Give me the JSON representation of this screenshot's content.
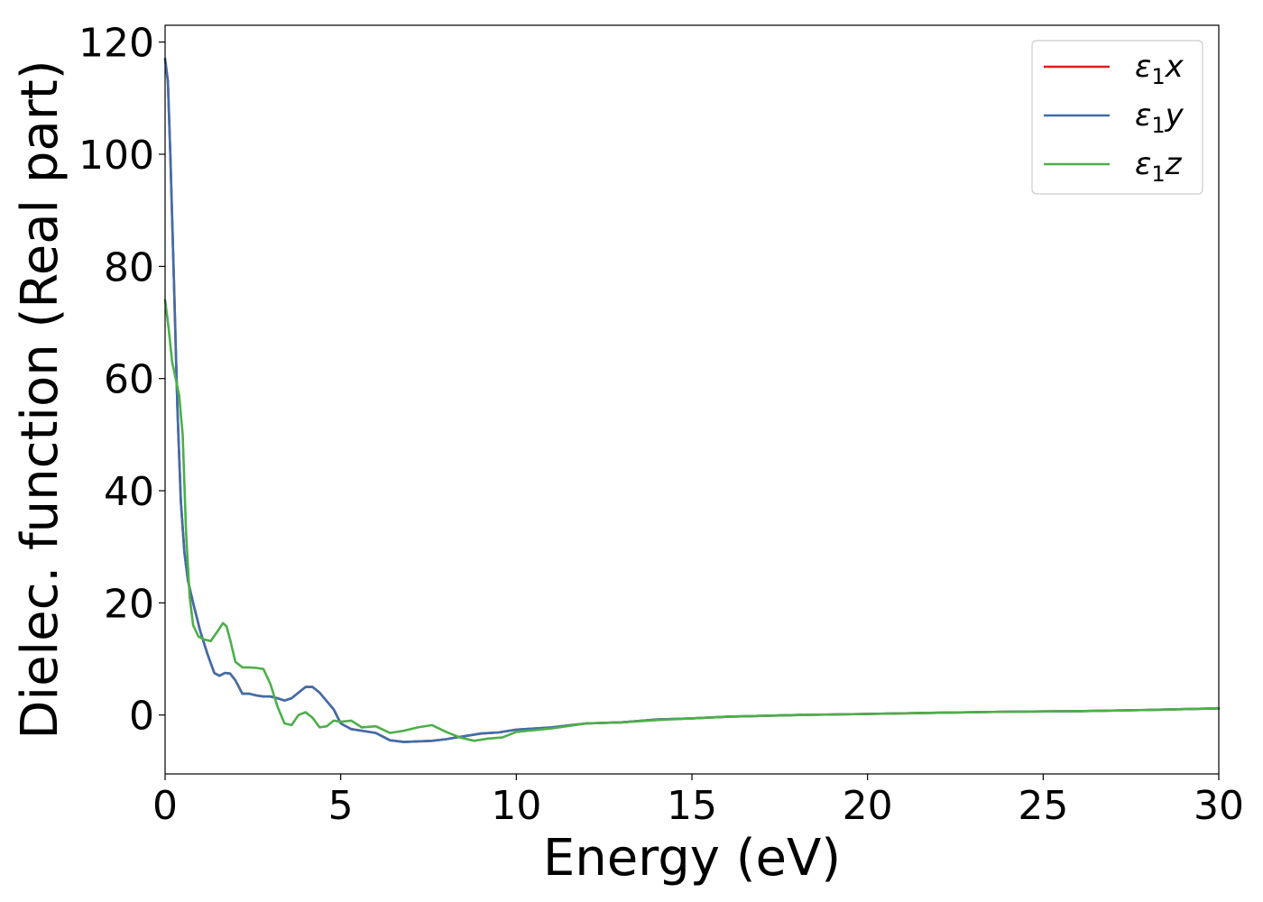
{
  "chart_data": {
    "type": "line",
    "title": "",
    "xlabel": "Energy (eV)",
    "ylabel": "Dielec. function (Real part)",
    "xlim": [
      0,
      30
    ],
    "ylim": [
      -10.5,
      123
    ],
    "xticks": [
      0,
      5,
      10,
      15,
      20,
      25,
      30
    ],
    "yticks": [
      0,
      20,
      40,
      60,
      80,
      100,
      120
    ],
    "xtick_labels": [
      "0",
      "5",
      "10",
      "15",
      "20",
      "25",
      "30"
    ],
    "ytick_labels": [
      "0",
      "20",
      "40",
      "60",
      "80",
      "100",
      "120"
    ],
    "grid": false,
    "legend_position": "top-right",
    "series": [
      {
        "name": "ε1x",
        "legend_base": "ε",
        "legend_sub": "1",
        "legend_suffix": "x",
        "color": "#e41a1c",
        "x": [
          0,
          0.08,
          0.15,
          0.25,
          0.35,
          0.45,
          0.55,
          0.65,
          0.8,
          1.0,
          1.2,
          1.4,
          1.55,
          1.7,
          1.85,
          2.0,
          2.2,
          2.4,
          2.6,
          2.8,
          3.0,
          3.2,
          3.4,
          3.6,
          3.8,
          4.0,
          4.2,
          4.4,
          4.6,
          4.8,
          5.0,
          5.3,
          5.6,
          6.0,
          6.4,
          6.8,
          7.2,
          7.6,
          8.0,
          8.5,
          9.0,
          9.5,
          10.0,
          11.0,
          12.0,
          13.0,
          14.0,
          15.0,
          16.0,
          18.0,
          20.0,
          22.0,
          24.0,
          26.0,
          28.0,
          30.0
        ],
        "y": [
          117,
          113,
          100,
          78,
          55,
          38,
          29,
          24,
          20,
          15,
          11,
          7.5,
          7,
          7.5,
          7.4,
          6.2,
          3.8,
          3.8,
          3.5,
          3.3,
          3.3,
          3,
          2.6,
          3,
          4,
          5,
          5,
          4,
          2.5,
          1,
          -1.5,
          -2.5,
          -2.8,
          -3.2,
          -4.5,
          -4.8,
          -4.7,
          -4.6,
          -4.3,
          -3.8,
          -3.3,
          -3.1,
          -2.6,
          -2.2,
          -1.5,
          -1.3,
          -0.8,
          -0.6,
          -0.3,
          0,
          0.2,
          0.4,
          0.6,
          0.7,
          0.9,
          1.2
        ]
      },
      {
        "name": "ε1y",
        "legend_base": "ε",
        "legend_sub": "1",
        "legend_suffix": "y",
        "color": "#3f6eab",
        "x": [
          0,
          0.08,
          0.15,
          0.25,
          0.35,
          0.45,
          0.55,
          0.65,
          0.8,
          1.0,
          1.2,
          1.4,
          1.55,
          1.7,
          1.85,
          2.0,
          2.2,
          2.4,
          2.6,
          2.8,
          3.0,
          3.2,
          3.4,
          3.6,
          3.8,
          4.0,
          4.2,
          4.4,
          4.6,
          4.8,
          5.0,
          5.3,
          5.6,
          6.0,
          6.4,
          6.8,
          7.2,
          7.6,
          8.0,
          8.5,
          9.0,
          9.5,
          10.0,
          11.0,
          12.0,
          13.0,
          14.0,
          15.0,
          16.0,
          18.0,
          20.0,
          22.0,
          24.0,
          26.0,
          28.0,
          30.0
        ],
        "y": [
          117,
          113,
          100,
          78,
          55,
          38,
          29,
          24,
          20,
          15,
          11,
          7.5,
          7,
          7.5,
          7.4,
          6.2,
          3.8,
          3.8,
          3.5,
          3.3,
          3.3,
          3,
          2.6,
          3,
          4,
          5,
          5,
          4,
          2.5,
          1,
          -1.5,
          -2.5,
          -2.8,
          -3.2,
          -4.5,
          -4.8,
          -4.7,
          -4.6,
          -4.3,
          -3.8,
          -3.3,
          -3.1,
          -2.6,
          -2.2,
          -1.5,
          -1.3,
          -0.8,
          -0.6,
          -0.3,
          0,
          0.2,
          0.4,
          0.6,
          0.7,
          0.9,
          1.2
        ]
      },
      {
        "name": "ε1z",
        "legend_base": "ε",
        "legend_sub": "1",
        "legend_suffix": "z",
        "color": "#4daf4a",
        "x": [
          0,
          0.1,
          0.2,
          0.3,
          0.4,
          0.5,
          0.6,
          0.7,
          0.8,
          0.95,
          1.1,
          1.3,
          1.5,
          1.65,
          1.75,
          1.85,
          2.0,
          2.2,
          2.4,
          2.6,
          2.8,
          3.0,
          3.2,
          3.4,
          3.6,
          3.8,
          4.0,
          4.2,
          4.4,
          4.6,
          4.8,
          5.0,
          5.3,
          5.6,
          6.0,
          6.4,
          6.8,
          7.2,
          7.6,
          8.0,
          8.4,
          8.8,
          9.2,
          9.6,
          10.0,
          11.0,
          12.0,
          13.0,
          14.0,
          15.0,
          16.0,
          18.0,
          20.0,
          22.0,
          24.0,
          26.0,
          28.0,
          30.0
        ],
        "y": [
          74,
          69,
          63,
          60,
          57,
          50,
          32,
          21,
          16,
          14,
          13.5,
          13.2,
          15,
          16.4,
          15.8,
          13.5,
          9.5,
          8.5,
          8.5,
          8.4,
          8.2,
          5.5,
          1.5,
          -1.5,
          -1.8,
          0,
          0.5,
          -0.5,
          -2.2,
          -2.0,
          -1.0,
          -1.2,
          -1.0,
          -2.2,
          -2.0,
          -3.2,
          -2.8,
          -2.2,
          -1.8,
          -3.0,
          -4.0,
          -4.6,
          -4.2,
          -4.0,
          -3.0,
          -2.4,
          -1.5,
          -1.3,
          -0.9,
          -0.6,
          -0.3,
          0,
          0.2,
          0.4,
          0.6,
          0.7,
          0.9,
          1.2
        ]
      }
    ]
  }
}
